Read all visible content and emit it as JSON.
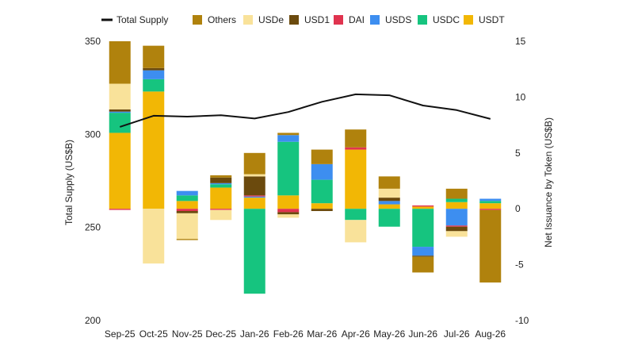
{
  "chart_data": {
    "type": "bar",
    "subtype": "stacked-bar-with-line",
    "categories": [
      "Sep-25",
      "Oct-25",
      "Nov-25",
      "Dec-25",
      "Jan-26",
      "Feb-26",
      "Mar-26",
      "Apr-26",
      "May-26",
      "Jun-26",
      "Jul-26",
      "Aug-26"
    ],
    "ylabel_left": "Total Supply (US$B)",
    "ylabel_right": "Net Issuance by Token (US$B)",
    "ylim_left": [
      200,
      350
    ],
    "ylim_right": [
      -10,
      15
    ],
    "left_ticks": [
      200,
      250,
      300,
      350
    ],
    "right_ticks": [
      -10,
      -5,
      0,
      5,
      10,
      15
    ],
    "legend_position": "top",
    "legend": [
      "Total Supply",
      "Others",
      "USDe",
      "USD1",
      "DAI",
      "USDS",
      "USDC",
      "USDT"
    ],
    "line": {
      "name": "Total Supply",
      "color": "#111111",
      "values": [
        304,
        310,
        309.5,
        310.3,
        308.5,
        312,
        317.5,
        321.5,
        321,
        315.5,
        313,
        308.3
      ]
    },
    "series": [
      {
        "name": "USDT",
        "color": "#F2B705",
        "values": [
          6.8,
          10.5,
          0.7,
          1.9,
          1.0,
          1.2,
          0.5,
          5.3,
          0.4,
          0.2,
          0.6,
          0.5
        ]
      },
      {
        "name": "USDC",
        "color": "#16C47F",
        "values": [
          1.8,
          1.1,
          0.5,
          0.3,
          -7.6,
          4.8,
          2.1,
          -1.0,
          -1.6,
          -3.4,
          0.3,
          0.2
        ]
      },
      {
        "name": "USDS",
        "color": "#3D8EF0",
        "values": [
          0.1,
          0.8,
          0.4,
          0.1,
          0.1,
          0.6,
          1.4,
          0.0,
          0.3,
          -0.8,
          -1.5,
          0.2
        ]
      },
      {
        "name": "DAI",
        "color": "#E0334F",
        "values": [
          -0.1,
          0.0,
          -0.2,
          -0.1,
          0.1,
          -0.3,
          0.0,
          0.2,
          0.0,
          0.1,
          -0.1,
          -0.1
        ]
      },
      {
        "name": "USD1",
        "color": "#6B4A0D",
        "values": [
          0.2,
          0.2,
          -0.2,
          0.5,
          1.7,
          -0.2,
          -0.2,
          0.0,
          0.3,
          -0.1,
          -0.4,
          0.0
        ]
      },
      {
        "name": "USDe",
        "color": "#F9E29A",
        "values": [
          2.3,
          -4.9,
          -2.3,
          -0.9,
          0.2,
          -0.3,
          0.0,
          -2.0,
          0.8,
          0.0,
          -0.5,
          0.0
        ]
      },
      {
        "name": "Others",
        "color": "#B0820D",
        "values": [
          3.8,
          2.0,
          -0.1,
          0.2,
          1.9,
          0.2,
          1.3,
          1.6,
          1.1,
          -1.4,
          0.9,
          -6.5
        ]
      }
    ]
  }
}
